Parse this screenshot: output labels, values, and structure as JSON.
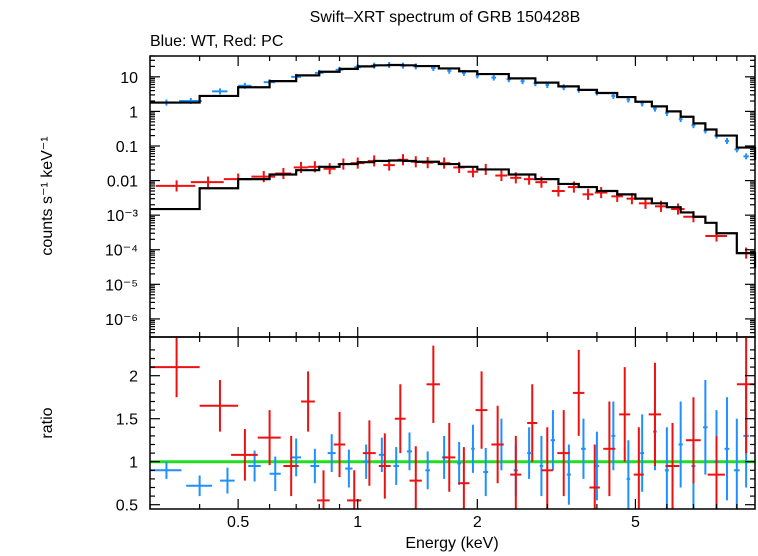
{
  "chart_data": [
    {
      "panel": "spectrum",
      "type": "scatter",
      "title": "Swift–XRT spectrum of GRB 150428B",
      "subtitle": "Blue: WT, Red: PC",
      "xlabel": "",
      "ylabel": "counts s⁻¹ keV⁻¹",
      "xscale": "log",
      "yscale": "log",
      "xlim": [
        0.3,
        10
      ],
      "ylim": [
        3e-07,
        40
      ],
      "x_ticks": [
        0.5,
        1,
        2,
        5
      ],
      "y_ticks": [
        {
          "value": 10,
          "label": "10"
        },
        {
          "value": 1,
          "label": "1"
        },
        {
          "value": 0.1,
          "label": "0.1"
        },
        {
          "value": 0.01,
          "label": "0.01"
        },
        {
          "value": 0.001,
          "label": "10⁻³"
        },
        {
          "value": 0.0001,
          "label": "10⁻⁴"
        },
        {
          "value": 1e-05,
          "label": "10⁻⁵"
        },
        {
          "value": 1e-06,
          "label": "10⁻⁶"
        }
      ],
      "series": [
        {
          "color": "#1e90ff",
          "x": [
            0.33,
            0.38,
            0.45,
            0.52,
            0.6,
            0.7,
            0.8,
            0.9,
            1.0,
            1.1,
            1.2,
            1.3,
            1.4,
            1.55,
            1.7,
            1.85,
            2.0,
            2.2,
            2.4,
            2.6,
            2.8,
            3.0,
            3.3,
            3.6,
            4.0,
            4.4,
            4.8,
            5.2,
            5.6,
            6.0,
            6.5,
            7.0,
            7.5,
            8.0,
            8.5,
            9.0,
            9.5
          ],
          "y": [
            1.8,
            2.0,
            3.8,
            5.5,
            7.0,
            10.0,
            13.0,
            16.0,
            19.0,
            21.0,
            22.0,
            21.0,
            20.0,
            18.0,
            15.0,
            13.0,
            11.0,
            9.5,
            8.5,
            7.5,
            6.5,
            5.8,
            5.0,
            4.2,
            3.5,
            2.8,
            2.2,
            1.7,
            1.2,
            0.9,
            0.6,
            0.4,
            0.28,
            0.2,
            0.14,
            0.08,
            0.05
          ],
          "xerr": [
            0.03,
            0.025,
            0.02,
            0.02,
            0.02,
            0.02,
            0.02,
            0.02,
            0.02,
            0.02,
            0.02,
            0.02,
            0.02,
            0.02,
            0.02,
            0.02,
            0.02,
            0.03,
            0.03,
            0.03,
            0.03,
            0.03,
            0.04,
            0.04,
            0.05,
            0.05,
            0.05,
            0.05,
            0.06,
            0.06,
            0.07,
            0.08,
            0.08,
            0.1,
            0.1,
            0.12,
            0.15
          ]
        },
        {
          "color": "#ee1111",
          "x": [
            0.35,
            0.42,
            0.5,
            0.58,
            0.65,
            0.72,
            0.78,
            0.85,
            0.92,
            1.0,
            1.1,
            1.2,
            1.3,
            1.4,
            1.5,
            1.65,
            1.8,
            1.95,
            2.1,
            2.3,
            2.5,
            2.7,
            2.9,
            3.2,
            3.5,
            3.8,
            4.1,
            4.5,
            4.9,
            5.3,
            5.8,
            6.4,
            7.0,
            8.0,
            9.5
          ],
          "y": [
            0.007,
            0.009,
            0.011,
            0.013,
            0.016,
            0.024,
            0.025,
            0.022,
            0.03,
            0.032,
            0.037,
            0.028,
            0.04,
            0.035,
            0.033,
            0.032,
            0.024,
            0.018,
            0.021,
            0.014,
            0.012,
            0.011,
            0.009,
            0.005,
            0.0065,
            0.004,
            0.0045,
            0.0035,
            0.003,
            0.0022,
            0.0018,
            0.0015,
            0.0009,
            0.00025,
            8e-05
          ],
          "xerr": [
            0.04,
            0.04,
            0.04,
            0.04,
            0.03,
            0.03,
            0.03,
            0.03,
            0.03,
            0.04,
            0.04,
            0.04,
            0.04,
            0.04,
            0.05,
            0.06,
            0.06,
            0.06,
            0.07,
            0.08,
            0.08,
            0.08,
            0.1,
            0.12,
            0.12,
            0.12,
            0.15,
            0.15,
            0.15,
            0.2,
            0.2,
            0.25,
            0.4,
            0.5,
            0.5
          ]
        }
      ],
      "model": [
        {
          "color": "#000000",
          "x": [
            0.3,
            0.4,
            0.5,
            0.6,
            0.7,
            0.8,
            0.9,
            1.0,
            1.1,
            1.2,
            1.3,
            1.4,
            1.6,
            1.8,
            2.0,
            2.4,
            2.8,
            3.2,
            3.6,
            4.0,
            4.5,
            5.0,
            5.5,
            6.0,
            6.5,
            7.0,
            7.5,
            8.0,
            9.0,
            10.0
          ],
          "y": [
            1.8,
            2.8,
            5.0,
            7.5,
            11.0,
            14.0,
            17.0,
            20.0,
            21.5,
            22.0,
            21.5,
            20.5,
            17.5,
            14.5,
            12.0,
            9.0,
            6.8,
            5.3,
            4.2,
            3.4,
            2.6,
            1.9,
            1.4,
            1.0,
            0.7,
            0.45,
            0.3,
            0.2,
            0.09,
            0.04
          ]
        },
        {
          "color": "#000000",
          "x": [
            0.3,
            0.4,
            0.5,
            0.6,
            0.7,
            0.8,
            0.9,
            1.0,
            1.1,
            1.2,
            1.3,
            1.4,
            1.6,
            1.8,
            2.0,
            2.4,
            2.8,
            3.2,
            3.6,
            4.0,
            4.5,
            5.0,
            5.5,
            6.0,
            6.5,
            7.0,
            7.5,
            8.0,
            9.0,
            10.0
          ],
          "y": [
            0.0015,
            0.006,
            0.011,
            0.015,
            0.02,
            0.025,
            0.03,
            0.034,
            0.037,
            0.038,
            0.037,
            0.035,
            0.03,
            0.025,
            0.021,
            0.015,
            0.011,
            0.008,
            0.0065,
            0.005,
            0.004,
            0.003,
            0.0022,
            0.0017,
            0.0012,
            0.0009,
            0.0006,
            0.0003,
            8e-05,
            3e-05
          ]
        }
      ]
    },
    {
      "panel": "ratio",
      "type": "scatter",
      "xlabel": "Energy (keV)",
      "ylabel": "ratio",
      "xscale": "log",
      "xlim": [
        0.3,
        10
      ],
      "ylim": [
        0.45,
        2.45
      ],
      "x_ticks": [
        0.5,
        1,
        2,
        5
      ],
      "x_tick_labels": [
        "0.5",
        "1",
        "2",
        "5"
      ],
      "y_ticks": [
        0.5,
        1,
        1.5,
        2
      ],
      "y_tick_labels": [
        "0.5",
        "1",
        "1.5",
        "2"
      ],
      "reference_line": {
        "y": 1,
        "color": "#22dd22"
      },
      "series": [
        {
          "color": "#1e90ff",
          "x": [
            0.33,
            0.4,
            0.47,
            0.55,
            0.62,
            0.7,
            0.78,
            0.86,
            0.95,
            1.05,
            1.15,
            1.25,
            1.35,
            1.5,
            1.65,
            1.8,
            1.95,
            2.1,
            2.3,
            2.5,
            2.7,
            2.9,
            3.1,
            3.4,
            3.7,
            4.0,
            4.4,
            4.8,
            5.2,
            5.6,
            6.0,
            6.5,
            7.0,
            7.5,
            8.0,
            8.5,
            9.0,
            9.5
          ],
          "y": [
            0.9,
            0.72,
            0.78,
            0.95,
            0.86,
            1.05,
            0.95,
            1.1,
            0.92,
            1.0,
            1.08,
            0.95,
            1.12,
            0.9,
            1.05,
            0.98,
            1.15,
            0.88,
            1.2,
            0.9,
            1.1,
            0.95,
            1.25,
            0.85,
            1.15,
            0.95,
            1.3,
            0.8,
            1.1,
            1.35,
            0.9,
            1.2,
            0.95,
            1.4,
            1.0,
            1.15,
            0.9,
            1.3
          ],
          "yerr": [
            0.1,
            0.12,
            0.15,
            0.18,
            0.2,
            0.22,
            0.2,
            0.22,
            0.22,
            0.2,
            0.2,
            0.22,
            0.22,
            0.22,
            0.25,
            0.25,
            0.28,
            0.28,
            0.3,
            0.3,
            0.3,
            0.35,
            0.35,
            0.35,
            0.35,
            0.4,
            0.4,
            0.45,
            0.45,
            0.45,
            0.5,
            0.5,
            0.55,
            0.55,
            0.6,
            0.6,
            0.6,
            0.6
          ],
          "xerr": [
            0.03,
            0.03,
            0.02,
            0.02,
            0.02,
            0.02,
            0.02,
            0.02,
            0.02,
            0.02,
            0.02,
            0.02,
            0.02,
            0.02,
            0.02,
            0.02,
            0.02,
            0.03,
            0.03,
            0.03,
            0.03,
            0.03,
            0.04,
            0.04,
            0.05,
            0.05,
            0.05,
            0.05,
            0.06,
            0.06,
            0.07,
            0.08,
            0.08,
            0.1,
            0.1,
            0.12,
            0.15,
            0.15
          ]
        },
        {
          "color": "#ee1111",
          "x": [
            0.35,
            0.45,
            0.52,
            0.6,
            0.68,
            0.75,
            0.82,
            0.9,
            0.98,
            1.07,
            1.17,
            1.28,
            1.4,
            1.55,
            1.7,
            1.85,
            2.05,
            2.25,
            2.5,
            2.75,
            3.0,
            3.3,
            3.6,
            3.95,
            4.3,
            4.7,
            5.1,
            5.6,
            6.2,
            7.0,
            8.0,
            9.5
          ],
          "y": [
            2.1,
            1.65,
            1.08,
            1.28,
            0.95,
            1.7,
            0.55,
            1.2,
            0.55,
            1.1,
            0.95,
            1.5,
            0.78,
            1.9,
            1.05,
            0.75,
            1.6,
            1.2,
            0.85,
            1.45,
            0.9,
            1.1,
            1.8,
            0.7,
            1.15,
            1.55,
            0.85,
            1.55,
            0.95,
            1.25,
            0.85,
            1.9
          ],
          "yerr": [
            0.35,
            0.3,
            0.3,
            0.32,
            0.35,
            0.35,
            0.35,
            0.38,
            0.35,
            0.38,
            0.38,
            0.4,
            0.4,
            0.45,
            0.4,
            0.42,
            0.45,
            0.45,
            0.45,
            0.45,
            0.5,
            0.5,
            0.5,
            0.5,
            0.55,
            0.55,
            0.55,
            0.6,
            0.5,
            0.5,
            0.45,
            0.8
          ],
          "xerr": [
            0.05,
            0.05,
            0.04,
            0.04,
            0.03,
            0.03,
            0.03,
            0.03,
            0.04,
            0.04,
            0.04,
            0.04,
            0.05,
            0.06,
            0.06,
            0.06,
            0.07,
            0.08,
            0.08,
            0.08,
            0.1,
            0.12,
            0.12,
            0.12,
            0.15,
            0.15,
            0.15,
            0.2,
            0.25,
            0.3,
            0.4,
            0.5
          ]
        }
      ]
    }
  ]
}
